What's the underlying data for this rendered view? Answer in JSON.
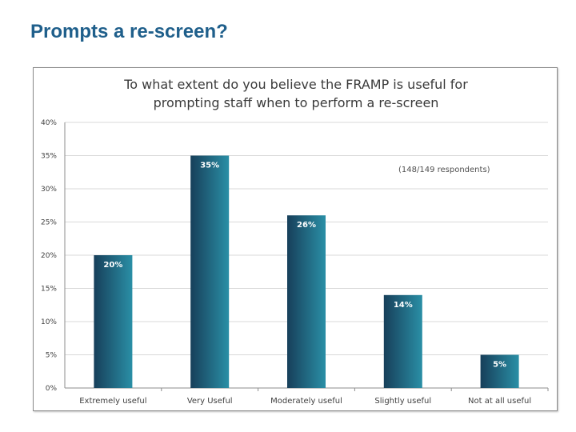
{
  "slide": {
    "title": "Prompts a re-screen?"
  },
  "chart_data": {
    "type": "bar",
    "title": [
      "To what extent do you believe the FRAMP is useful for",
      "prompting staff when to perform a re-screen"
    ],
    "annotation": "(148/149 respondents)",
    "categories": [
      "Extremely useful",
      "Very Useful",
      "Moderately useful",
      "Slightly useful",
      "Not at all useful"
    ],
    "values": [
      20,
      35,
      26,
      14,
      5
    ],
    "data_labels": [
      "20%",
      "35%",
      "26%",
      "14%",
      "5%"
    ],
    "yticks": [
      0,
      5,
      10,
      15,
      20,
      25,
      30,
      35,
      40
    ],
    "ytick_labels": [
      "0%",
      "5%",
      "10%",
      "15%",
      "20%",
      "25%",
      "30%",
      "35%",
      "40%"
    ],
    "ylim": [
      0,
      40
    ],
    "grid": true,
    "colors": {
      "bar_dark": "#173f5a",
      "bar_light": "#2a8fa6",
      "grid": "#d9d9d9",
      "axis": "#8c8c8c"
    }
  }
}
